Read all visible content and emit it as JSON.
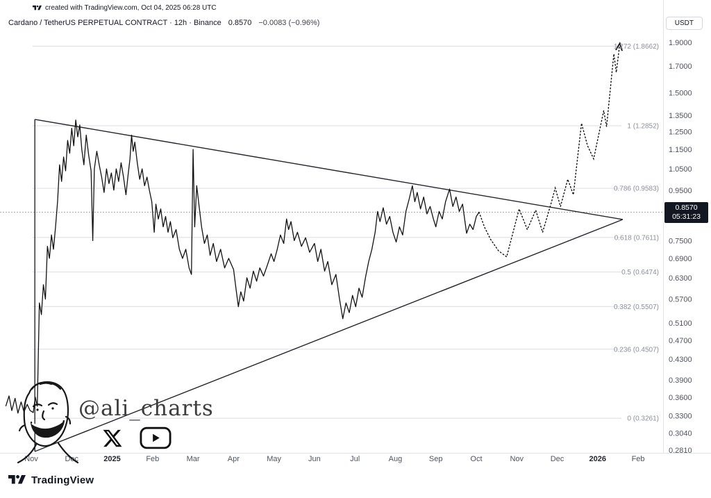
{
  "top_bar": {
    "created_note": "created with TradingView.com, Oct 04, 2025 06:28 UTC"
  },
  "header": {
    "symbol_title": "Cardano / TetherUS PERPETUAL CONTRACT · 12h · Binance",
    "last_price": "0.8570",
    "change": "−0.0083 (−0.96%)",
    "unit_button": "USDT"
  },
  "price_label": {
    "price": "0.8570",
    "countdown": "05:31:23"
  },
  "watermark": {
    "handle": "@ali_charts"
  },
  "footer": {
    "brand": "TradingView"
  },
  "colors": {
    "line": "#121212",
    "grid": "#dcdee3",
    "badge_bg": "#131722",
    "text_muted": "#8b8f99"
  },
  "chart_data": {
    "type": "line",
    "title": "Cardano / TetherUS PERPETUAL CONTRACT · 12h · Binance",
    "current_price": 0.857,
    "x_axis": {
      "labels": [
        "Nov",
        "Dec",
        "2025",
        "Feb",
        "Mar",
        "Apr",
        "May",
        "Jun",
        "Jul",
        "Aug",
        "Sep",
        "Oct",
        "Nov",
        "Dec",
        "2026",
        "Feb"
      ]
    },
    "y_axis": {
      "scale": "log",
      "range": [
        0.281,
        1.9
      ],
      "ticks": [
        {
          "label": "1.9000",
          "value": 1.9
        },
        {
          "label": "1.7000",
          "value": 1.7
        },
        {
          "label": "1.5000",
          "value": 1.5
        },
        {
          "label": "1.3500",
          "value": 1.35
        },
        {
          "label": "1.2500",
          "value": 1.25
        },
        {
          "label": "1.1500",
          "value": 1.15
        },
        {
          "label": "1.0500",
          "value": 1.05
        },
        {
          "label": "0.9500",
          "value": 0.95
        },
        {
          "label": "0.7500",
          "value": 0.75
        },
        {
          "label": "0.6900",
          "value": 0.69
        },
        {
          "label": "0.6300",
          "value": 0.63
        },
        {
          "label": "0.5700",
          "value": 0.57
        },
        {
          "label": "0.5100",
          "value": 0.51
        },
        {
          "label": "0.4700",
          "value": 0.47
        },
        {
          "label": "0.4300",
          "value": 0.43
        },
        {
          "label": "0.3900",
          "value": 0.39
        },
        {
          "label": "0.3600",
          "value": 0.36
        },
        {
          "label": "0.3300",
          "value": 0.33
        },
        {
          "label": "0.3040",
          "value": 0.304
        },
        {
          "label": "0.2810",
          "value": 0.281
        }
      ]
    },
    "fib_levels": [
      {
        "label": "1.272 (1.8662)",
        "value": 1.8662
      },
      {
        "label": "1 (1.2852)",
        "value": 1.2852
      },
      {
        "label": "0.786 (0.9583)",
        "value": 0.9583
      },
      {
        "label": "0.618 (0.7611)",
        "value": 0.7611
      },
      {
        "label": "0.5 (0.6474)",
        "value": 0.6474
      },
      {
        "label": "0.382 (0.5507)",
        "value": 0.5507
      },
      {
        "label": "0.236 (0.4507)",
        "value": 0.4507
      },
      {
        "label": "0 (0.3261)",
        "value": 0.3261
      }
    ],
    "triangle": {
      "left_edge": [
        [
          0.09,
          1.324
        ],
        [
          0.09,
          0.279
        ]
      ],
      "upper": [
        [
          0.09,
          1.324
        ],
        [
          14.62,
          0.828
        ]
      ],
      "lower": [
        [
          0.09,
          0.279
        ],
        [
          14.62,
          0.828
        ]
      ]
    },
    "price_series": [
      [
        -0.63,
        0.345
      ],
      [
        -0.55,
        0.362
      ],
      [
        -0.48,
        0.338
      ],
      [
        -0.4,
        0.358
      ],
      [
        -0.33,
        0.334
      ],
      [
        -0.25,
        0.352
      ],
      [
        -0.18,
        0.336
      ],
      [
        -0.1,
        0.348
      ],
      [
        -0.03,
        0.338
      ],
      [
        0.05,
        0.335
      ],
      [
        0.1,
        0.36
      ],
      [
        0.15,
        0.345
      ],
      [
        0.2,
        0.56
      ],
      [
        0.25,
        0.53
      ],
      [
        0.3,
        0.61
      ],
      [
        0.35,
        0.57
      ],
      [
        0.4,
        0.73
      ],
      [
        0.45,
        0.69
      ],
      [
        0.5,
        0.77
      ],
      [
        0.55,
        0.72
      ],
      [
        0.6,
        0.8
      ],
      [
        0.65,
        0.9
      ],
      [
        0.7,
        1.07
      ],
      [
        0.75,
        0.99
      ],
      [
        0.8,
        1.11
      ],
      [
        0.85,
        1.04
      ],
      [
        0.9,
        1.2
      ],
      [
        0.95,
        1.13
      ],
      [
        1.0,
        1.27
      ],
      [
        1.05,
        1.17
      ],
      [
        1.1,
        1.32
      ],
      [
        1.15,
        1.22
      ],
      [
        1.2,
        1.29
      ],
      [
        1.25,
        1.15
      ],
      [
        1.3,
        1.07
      ],
      [
        1.36,
        1.23
      ],
      [
        1.42,
        1.12
      ],
      [
        1.48,
        1.04
      ],
      [
        1.52,
        0.75
      ],
      [
        1.56,
        1.05
      ],
      [
        1.62,
        1.14
      ],
      [
        1.68,
        1.07
      ],
      [
        1.74,
        1.01
      ],
      [
        1.8,
        0.94
      ],
      [
        1.86,
        1.05
      ],
      [
        1.92,
        0.98
      ],
      [
        1.98,
        1.03
      ],
      [
        2.04,
        0.95
      ],
      [
        2.1,
        1.05
      ],
      [
        2.16,
        0.99
      ],
      [
        2.22,
        1.08
      ],
      [
        2.28,
        1.01
      ],
      [
        2.34,
        0.93
      ],
      [
        2.4,
        1.03
      ],
      [
        2.44,
        1.1
      ],
      [
        2.48,
        1.23
      ],
      [
        2.52,
        1.14
      ],
      [
        2.56,
        1.19
      ],
      [
        2.62,
        1.08
      ],
      [
        2.68,
        1.0
      ],
      [
        2.74,
        1.05
      ],
      [
        2.8,
        0.97
      ],
      [
        2.86,
        1.01
      ],
      [
        2.92,
        0.95
      ],
      [
        2.98,
        0.9
      ],
      [
        3.04,
        0.78
      ],
      [
        3.08,
        0.89
      ],
      [
        3.14,
        0.83
      ],
      [
        3.2,
        0.87
      ],
      [
        3.26,
        0.8
      ],
      [
        3.32,
        0.84
      ],
      [
        3.38,
        0.78
      ],
      [
        3.44,
        0.82
      ],
      [
        3.5,
        0.76
      ],
      [
        3.58,
        0.79
      ],
      [
        3.66,
        0.72
      ],
      [
        3.74,
        0.69
      ],
      [
        3.82,
        0.72
      ],
      [
        3.9,
        0.66
      ],
      [
        3.96,
        0.64
      ],
      [
        4.0,
        1.15
      ],
      [
        4.04,
        0.8
      ],
      [
        4.09,
        0.97
      ],
      [
        4.15,
        0.88
      ],
      [
        4.21,
        0.8
      ],
      [
        4.28,
        0.74
      ],
      [
        4.35,
        0.77
      ],
      [
        4.42,
        0.7
      ],
      [
        4.5,
        0.74
      ],
      [
        4.58,
        0.68
      ],
      [
        4.68,
        0.72
      ],
      [
        4.78,
        0.66
      ],
      [
        4.88,
        0.69
      ],
      [
        5.0,
        0.655
      ],
      [
        5.06,
        0.6
      ],
      [
        5.12,
        0.55
      ],
      [
        5.18,
        0.59
      ],
      [
        5.25,
        0.565
      ],
      [
        5.33,
        0.63
      ],
      [
        5.41,
        0.6
      ],
      [
        5.49,
        0.65
      ],
      [
        5.57,
        0.62
      ],
      [
        5.65,
        0.66
      ],
      [
        5.74,
        0.635
      ],
      [
        5.84,
        0.67
      ],
      [
        5.93,
        0.705
      ],
      [
        6.0,
        0.68
      ],
      [
        6.08,
        0.72
      ],
      [
        6.16,
        0.77
      ],
      [
        6.24,
        0.74
      ],
      [
        6.31,
        0.83
      ],
      [
        6.36,
        0.79
      ],
      [
        6.42,
        0.82
      ],
      [
        6.5,
        0.75
      ],
      [
        6.58,
        0.78
      ],
      [
        6.68,
        0.73
      ],
      [
        6.78,
        0.76
      ],
      [
        6.88,
        0.71
      ],
      [
        7.0,
        0.74
      ],
      [
        7.08,
        0.68
      ],
      [
        7.16,
        0.72
      ],
      [
        7.25,
        0.65
      ],
      [
        7.33,
        0.68
      ],
      [
        7.43,
        0.61
      ],
      [
        7.53,
        0.64
      ],
      [
        7.62,
        0.57
      ],
      [
        7.7,
        0.52
      ],
      [
        7.78,
        0.56
      ],
      [
        7.86,
        0.535
      ],
      [
        7.94,
        0.58
      ],
      [
        8.02,
        0.55
      ],
      [
        8.1,
        0.6
      ],
      [
        8.18,
        0.575
      ],
      [
        8.26,
        0.63
      ],
      [
        8.34,
        0.68
      ],
      [
        8.42,
        0.72
      ],
      [
        8.5,
        0.78
      ],
      [
        8.56,
        0.86
      ],
      [
        8.62,
        0.82
      ],
      [
        8.7,
        0.875
      ],
      [
        8.78,
        0.81
      ],
      [
        8.86,
        0.84
      ],
      [
        8.94,
        0.78
      ],
      [
        9.02,
        0.745
      ],
      [
        9.1,
        0.8
      ],
      [
        9.18,
        0.77
      ],
      [
        9.26,
        0.86
      ],
      [
        9.34,
        0.91
      ],
      [
        9.42,
        0.97
      ],
      [
        9.48,
        0.9
      ],
      [
        9.54,
        0.94
      ],
      [
        9.62,
        0.87
      ],
      [
        9.7,
        0.92
      ],
      [
        9.78,
        0.85
      ],
      [
        9.86,
        0.88
      ],
      [
        9.94,
        0.83
      ],
      [
        10.0,
        0.8
      ],
      [
        10.08,
        0.86
      ],
      [
        10.16,
        0.83
      ],
      [
        10.24,
        0.9
      ],
      [
        10.34,
        0.955
      ],
      [
        10.42,
        0.88
      ],
      [
        10.5,
        0.92
      ],
      [
        10.58,
        0.86
      ],
      [
        10.66,
        0.89
      ],
      [
        10.76,
        0.776
      ],
      [
        10.84,
        0.81
      ],
      [
        10.92,
        0.79
      ],
      [
        11.0,
        0.84
      ],
      [
        11.07,
        0.857
      ]
    ],
    "projection_series": [
      [
        11.07,
        0.857
      ],
      [
        11.2,
        0.8
      ],
      [
        11.35,
        0.755
      ],
      [
        11.55,
        0.715
      ],
      [
        11.75,
        0.695
      ],
      [
        12.06,
        0.87
      ],
      [
        12.26,
        0.79
      ],
      [
        12.47,
        0.865
      ],
      [
        12.64,
        0.78
      ],
      [
        12.86,
        0.9
      ],
      [
        12.95,
        0.96
      ],
      [
        13.08,
        0.88
      ],
      [
        13.26,
        1.0
      ],
      [
        13.4,
        0.93
      ],
      [
        13.6,
        1.3
      ],
      [
        13.75,
        1.17
      ],
      [
        13.9,
        1.1
      ],
      [
        14.15,
        1.38
      ],
      [
        14.22,
        1.28
      ],
      [
        14.4,
        1.8
      ],
      [
        14.46,
        1.65
      ],
      [
        14.54,
        1.866
      ]
    ]
  }
}
